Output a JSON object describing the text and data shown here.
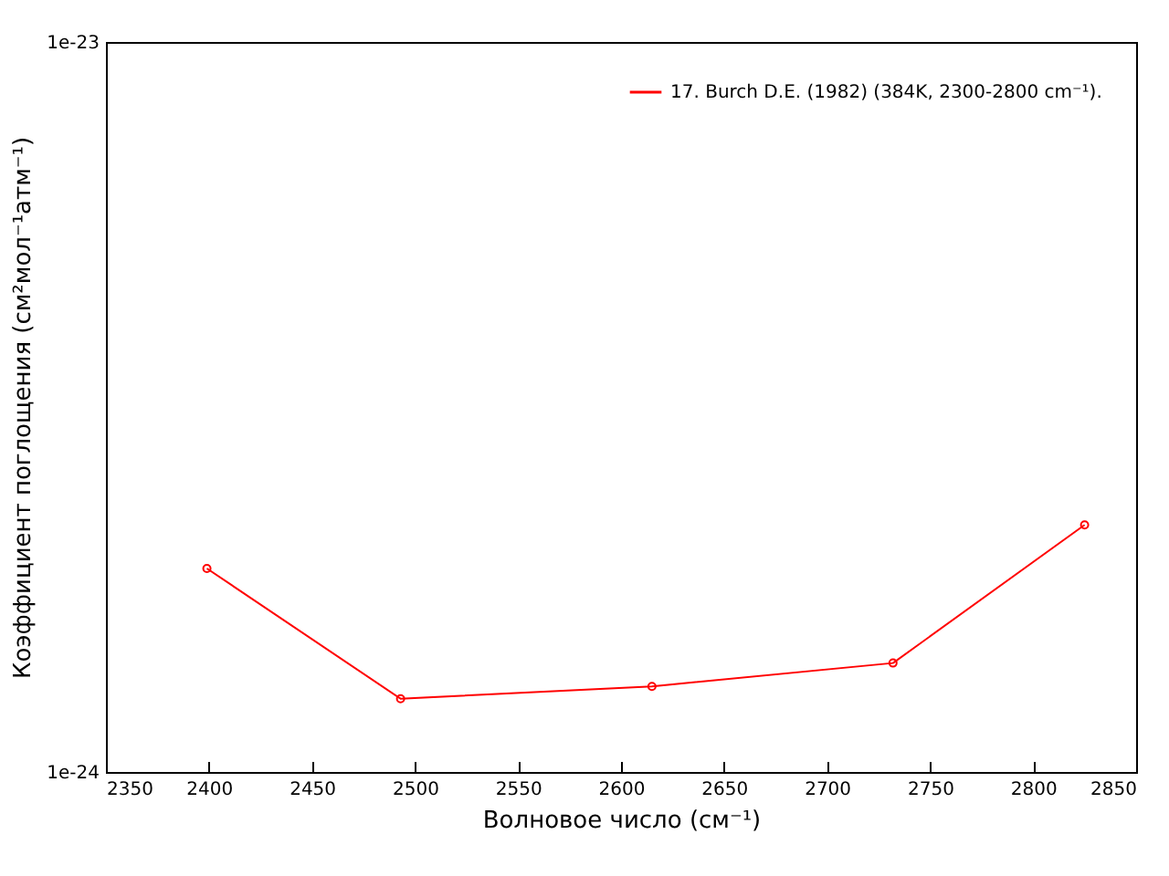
{
  "chart_data": {
    "type": "line",
    "xlabel": "Волновое число (см⁻¹)",
    "ylabel": "Коэффициент поглощения (см²мол⁻¹атм⁻¹)",
    "x": [
      2399,
      2493,
      2615,
      2732,
      2825
    ],
    "series": [
      {
        "name": "17. Burch D.E. (1982) (384K, 2300-2800 cm⁻¹).",
        "color": "#ff0000",
        "values": [
          1.9e-24,
          1.26e-24,
          1.31e-24,
          1.41e-24,
          2.18e-24
        ]
      }
    ],
    "xlim": [
      2350,
      2850
    ],
    "xticks": [
      2350,
      2400,
      2450,
      2500,
      2550,
      2600,
      2650,
      2700,
      2750,
      2800,
      2850
    ],
    "ylim": [
      1e-24,
      1e-23
    ],
    "yticks": [
      {
        "value": 1e-24,
        "label": "1e-24"
      },
      {
        "value": 1e-23,
        "label": "1e-23"
      }
    ],
    "log": "y",
    "grid": false,
    "legend": "top right",
    "marker": "circle",
    "line_style": "solid"
  }
}
